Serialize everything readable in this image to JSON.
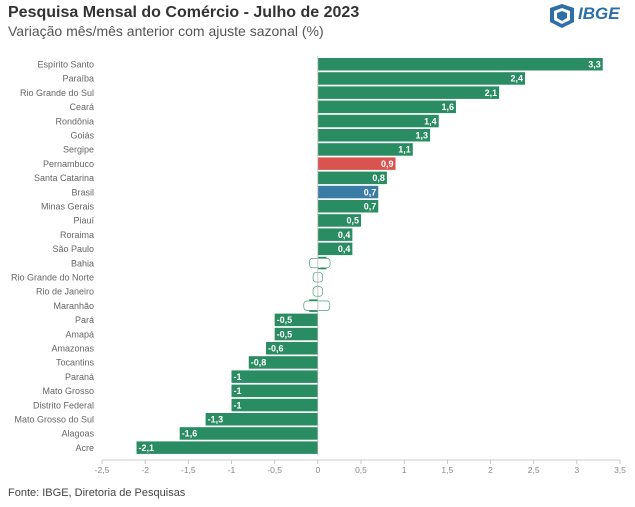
{
  "header": {
    "title": "Pesquisa Mensal do Comércio - Julho de 2023",
    "subtitle": "Variação mês/mês anterior com ajuste sazonal (%)"
  },
  "logo": {
    "text": "IBGE"
  },
  "footer": {
    "source": "Fonte: IBGE, Diretoria de Pesquisas"
  },
  "colors": {
    "default": "#2a8c62",
    "highlight_state": "#d9534f",
    "highlight_country": "#3a7ca5"
  },
  "chart_data": {
    "type": "bar",
    "orientation": "horizontal",
    "categories": [
      "Espírito Santo",
      "Paraíba",
      "Rio Grande do Sul",
      "Ceará",
      "Rondônia",
      "Goiás",
      "Sergipe",
      "Pernambuco",
      "Santa Catarina",
      "Brasil",
      "Minas Gerais",
      "Piauí",
      "Roraima",
      "São Paulo",
      "Bahia",
      "Rio Grande do Norte",
      "Rio de Janeiro",
      "Maranhão",
      "Pará",
      "Amapá",
      "Amazonas",
      "Tocantins",
      "Paraná",
      "Mato Grosso",
      "Distrito Federal",
      "Mato Grosso do Sul",
      "Alagoas",
      "Acre"
    ],
    "values": [
      3.3,
      2.4,
      2.1,
      1.6,
      1.4,
      1.3,
      1.1,
      0.9,
      0.8,
      0.7,
      0.7,
      0.5,
      0.4,
      0.4,
      0.1,
      0,
      0,
      -0.1,
      -0.5,
      -0.5,
      -0.6,
      -0.8,
      -1,
      -1,
      -1,
      -1.3,
      -1.6,
      -2.1
    ],
    "value_labels": [
      "3,3",
      "2,4",
      "2,1",
      "1,6",
      "1,4",
      "1,3",
      "1,1",
      "0,9",
      "0,8",
      "0,7",
      "0,7",
      "0,5",
      "0,4",
      "0,4",
      "0,1",
      "0",
      "0",
      "-0,1",
      "-0,5",
      "-0,5",
      "-0,6",
      "-0,8",
      "-1",
      "-1",
      "-1",
      "-1,3",
      "-1,6",
      "-2,1"
    ],
    "highlights": {
      "Pernambuco": "#d9534f",
      "Brasil": "#3a7ca5"
    },
    "xlim": [
      -2.5,
      3.5
    ],
    "xticks": [
      -2.5,
      -2,
      -1.5,
      -1,
      -0.5,
      0,
      0.5,
      1,
      1.5,
      2,
      2.5,
      3,
      3.5
    ],
    "xtick_labels": [
      "-2,5",
      "-2",
      "-1,5",
      "-1",
      "-0,5",
      "0",
      "0,5",
      "1",
      "1,5",
      "2",
      "2,5",
      "3",
      "3,5"
    ],
    "grid": false
  }
}
